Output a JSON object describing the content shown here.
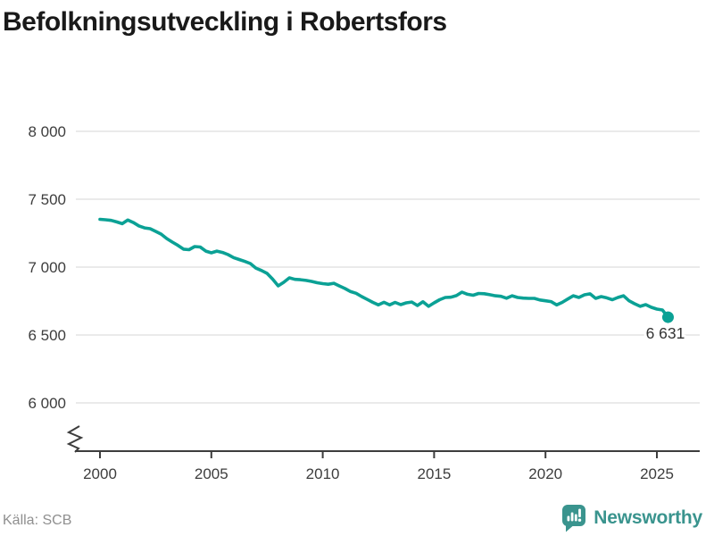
{
  "header": {
    "title": "Befolkningsutveckling i Robertsfors"
  },
  "footer": {
    "source": "Källa: SCB",
    "brand": {
      "name": "Newsworthy",
      "icon": "newsworthy-speech-bubble-chart-icon"
    }
  },
  "colors": {
    "line": "#0ba195",
    "brand": "#3a948e",
    "grid": "#e4e4e4",
    "axis": "#3d3d3d",
    "label_text": "#3d3d3d",
    "end_label_text": "#333333",
    "title_text": "#191919",
    "muted_text": "#8f8f8f",
    "background": "#ffffff"
  },
  "chart_data": {
    "type": "line",
    "title": "Befolkningsutveckling i Robertsfors",
    "source": "Källa: SCB",
    "series_name": "Folkmängd i Robertsfors",
    "grid": "horizontal",
    "legend": "none",
    "axis_break_bottom_left": true,
    "x_start": 2000,
    "xlim": [
      2000,
      2025.5
    ],
    "ylim": [
      6000,
      8000
    ],
    "y_ticks": [
      {
        "value": 8000,
        "label": "8 000"
      },
      {
        "value": 7500,
        "label": "7 500"
      },
      {
        "value": 7000,
        "label": "7 000"
      },
      {
        "value": 6500,
        "label": "6 500"
      },
      {
        "value": 6000,
        "label": "6 000"
      }
    ],
    "x_ticks": [
      {
        "value": 2000,
        "label": "2000"
      },
      {
        "value": 2005,
        "label": "2005"
      },
      {
        "value": 2010,
        "label": "2010"
      },
      {
        "value": 2015,
        "label": "2015"
      },
      {
        "value": 2020,
        "label": "2020"
      },
      {
        "value": 2025,
        "label": "2025"
      }
    ],
    "end_label": {
      "text": "6 631",
      "value": 6631,
      "x": 2025.5
    },
    "points": [
      [
        2000.0,
        7352
      ],
      [
        2000.25,
        7349
      ],
      [
        2000.5,
        7344
      ],
      [
        2000.75,
        7333
      ],
      [
        2001.0,
        7320
      ],
      [
        2001.25,
        7347
      ],
      [
        2001.5,
        7328
      ],
      [
        2001.75,
        7303
      ],
      [
        2002.0,
        7289
      ],
      [
        2002.25,
        7283
      ],
      [
        2002.5,
        7263
      ],
      [
        2002.75,
        7243
      ],
      [
        2003.0,
        7210
      ],
      [
        2003.25,
        7184
      ],
      [
        2003.5,
        7160
      ],
      [
        2003.75,
        7132
      ],
      [
        2004.0,
        7128
      ],
      [
        2004.25,
        7151
      ],
      [
        2004.5,
        7148
      ],
      [
        2004.75,
        7118
      ],
      [
        2005.0,
        7105
      ],
      [
        2005.25,
        7118
      ],
      [
        2005.5,
        7108
      ],
      [
        2005.75,
        7092
      ],
      [
        2006.0,
        7070
      ],
      [
        2006.25,
        7056
      ],
      [
        2006.5,
        7042
      ],
      [
        2006.75,
        7026
      ],
      [
        2007.0,
        6993
      ],
      [
        2007.25,
        6975
      ],
      [
        2007.5,
        6954
      ],
      [
        2007.75,
        6912
      ],
      [
        2008.0,
        6862
      ],
      [
        2008.25,
        6888
      ],
      [
        2008.5,
        6921
      ],
      [
        2008.75,
        6910
      ],
      [
        2009.0,
        6907
      ],
      [
        2009.25,
        6902
      ],
      [
        2009.5,
        6895
      ],
      [
        2009.75,
        6885
      ],
      [
        2010.0,
        6878
      ],
      [
        2010.25,
        6874
      ],
      [
        2010.5,
        6881
      ],
      [
        2010.75,
        6861
      ],
      [
        2011.0,
        6842
      ],
      [
        2011.25,
        6820
      ],
      [
        2011.5,
        6807
      ],
      [
        2011.75,
        6783
      ],
      [
        2012.0,
        6762
      ],
      [
        2012.25,
        6740
      ],
      [
        2012.5,
        6722
      ],
      [
        2012.75,
        6741
      ],
      [
        2013.0,
        6722
      ],
      [
        2013.25,
        6740
      ],
      [
        2013.5,
        6724
      ],
      [
        2013.75,
        6737
      ],
      [
        2014.0,
        6743
      ],
      [
        2014.25,
        6717
      ],
      [
        2014.5,
        6745
      ],
      [
        2014.75,
        6711
      ],
      [
        2015.0,
        6737
      ],
      [
        2015.25,
        6760
      ],
      [
        2015.5,
        6776
      ],
      [
        2015.75,
        6778
      ],
      [
        2016.0,
        6790
      ],
      [
        2016.25,
        6816
      ],
      [
        2016.5,
        6800
      ],
      [
        2016.75,
        6793
      ],
      [
        2017.0,
        6806
      ],
      [
        2017.25,
        6804
      ],
      [
        2017.5,
        6797
      ],
      [
        2017.75,
        6789
      ],
      [
        2018.0,
        6785
      ],
      [
        2018.25,
        6771
      ],
      [
        2018.5,
        6789
      ],
      [
        2018.75,
        6776
      ],
      [
        2019.0,
        6772
      ],
      [
        2019.25,
        6770
      ],
      [
        2019.5,
        6770
      ],
      [
        2019.75,
        6758
      ],
      [
        2020.0,
        6752
      ],
      [
        2020.25,
        6746
      ],
      [
        2020.5,
        6722
      ],
      [
        2020.75,
        6740
      ],
      [
        2021.0,
        6765
      ],
      [
        2021.25,
        6789
      ],
      [
        2021.5,
        6776
      ],
      [
        2021.75,
        6796
      ],
      [
        2022.0,
        6803
      ],
      [
        2022.25,
        6770
      ],
      [
        2022.5,
        6783
      ],
      [
        2022.75,
        6774
      ],
      [
        2023.0,
        6760
      ],
      [
        2023.25,
        6776
      ],
      [
        2023.5,
        6789
      ],
      [
        2023.75,
        6752
      ],
      [
        2024.0,
        6730
      ],
      [
        2024.25,
        6711
      ],
      [
        2024.5,
        6724
      ],
      [
        2024.75,
        6704
      ],
      [
        2025.0,
        6691
      ],
      [
        2025.25,
        6684
      ],
      [
        2025.5,
        6631
      ]
    ]
  }
}
